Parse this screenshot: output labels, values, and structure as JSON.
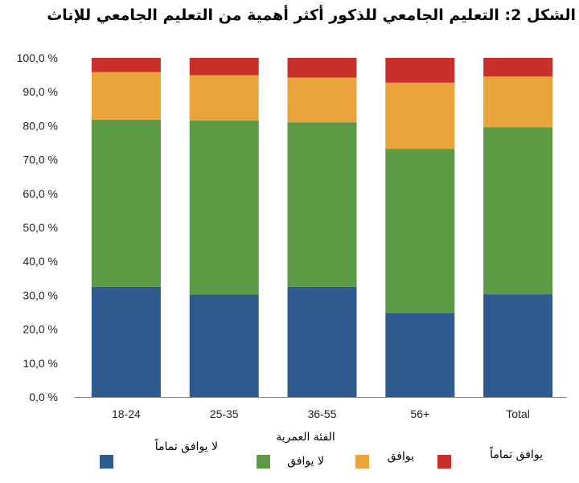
{
  "chart_data": {
    "type": "bar",
    "stacked": true,
    "title": "الشكل 2: التعليم الجامعي للذكور أكثر أهمية من التعليم الجامعي للإناث",
    "xlabel": "الفئة العمرية",
    "ylabel": "",
    "ylim": [
      0,
      100
    ],
    "yticks": [
      "0,0 %",
      "10,0 %",
      "20,0 %",
      "30,0 %",
      "40,0 %",
      "50,0 %",
      "60,0 %",
      "70,0 %",
      "80,0 %",
      "90,0 %",
      "100,0 %"
    ],
    "categories": [
      "18-24",
      "25-35",
      "36-55",
      "56+",
      "Total"
    ],
    "series": [
      {
        "name": "لا يوافق تماماً",
        "color": "#2e5a90",
        "values": [
          32.5,
          30.2,
          32.5,
          24.8,
          30.3
        ]
      },
      {
        "name": "لا يوافق",
        "color": "#5d9a45",
        "values": [
          49.3,
          51.3,
          48.5,
          48.4,
          49.2
        ]
      },
      {
        "name": "يوافق",
        "color": "#e9a43c",
        "values": [
          14.0,
          13.4,
          13.2,
          19.5,
          15.0
        ]
      },
      {
        "name": "يوافق تماماً",
        "color": "#c9302c",
        "values": [
          4.2,
          5.1,
          5.8,
          7.3,
          5.5
        ]
      }
    ],
    "grid": false,
    "legend_position": "bottom"
  }
}
